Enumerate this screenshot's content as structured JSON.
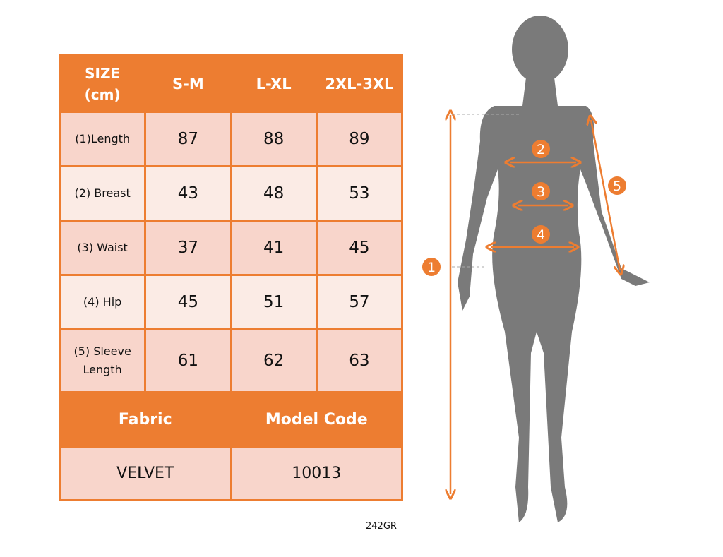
{
  "table": {
    "header": [
      "SIZE\n(cm)",
      "S-M",
      "L-XL",
      "2XL-3XL"
    ],
    "header_line1": "SIZE",
    "header_line2": "(cm)",
    "rows": [
      {
        "label": "(1)Length",
        "values": [
          "87",
          "88",
          "89"
        ]
      },
      {
        "label": "(2) Breast",
        "values": [
          "43",
          "48",
          "53"
        ]
      },
      {
        "label": "(3) Waist",
        "values": [
          "37",
          "41",
          "45"
        ]
      },
      {
        "label": "(4) Hip",
        "values": [
          "45",
          "51",
          "57"
        ]
      },
      {
        "label_line1": "(5) Sleeve",
        "label_line2": "Length",
        "values": [
          "61",
          "62",
          "63"
        ]
      }
    ],
    "fabric_label": "Fabric",
    "model_code_label": "Model Code",
    "fabric_value": "VELVET",
    "model_code_value": "10013"
  },
  "product_code": "242GR",
  "figure": {
    "markers": [
      "1",
      "2",
      "3",
      "4",
      "5"
    ]
  },
  "colors": {
    "accent": "#ed7d31",
    "row_dark": "#f8d5cb",
    "row_light": "#fbebe5",
    "silhouette": "#7a7a7a"
  }
}
